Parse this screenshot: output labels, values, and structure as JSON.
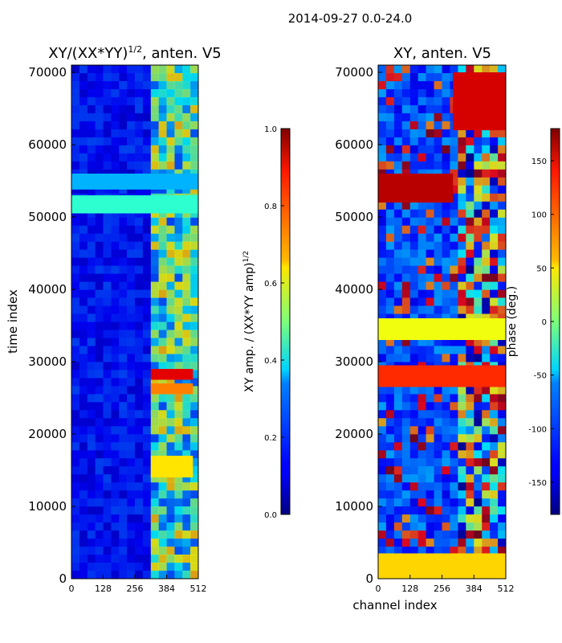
{
  "figure_title": "2014-09-27 0.0-24.0",
  "chart_data": [
    {
      "type": "heatmap",
      "title": "XY/(XX*YY)^1/2, anten. V5",
      "title_base": "XY/(XX*YY)",
      "title_exp": "1/2",
      "title_suffix": ", anten. V5",
      "xlabel": "",
      "ylabel": "time index",
      "xlim": [
        0,
        512
      ],
      "ylim": [
        0,
        71000
      ],
      "xticks": [
        "0",
        "128",
        "256",
        "384",
        "512"
      ],
      "yticks": [
        "0",
        "10000",
        "20000",
        "30000",
        "40000",
        "50000",
        "60000",
        "70000"
      ],
      "colormap": "jet",
      "colorbar": {
        "label": "XY amp. / (XX*YY amp)^1/2",
        "label_base": "XY amp. / (XX*YY amp)",
        "label_exp": "1/2",
        "range": [
          0.0,
          1.0
        ],
        "ticks": [
          "0.0",
          "0.2",
          "0.4",
          "0.6",
          "0.8",
          "1.0"
        ]
      },
      "bands": [
        {
          "t0": 50500,
          "t1": 53000,
          "c0": 0,
          "c1": 512,
          "value": 0.42
        },
        {
          "t0": 53800,
          "t1": 56000,
          "c0": 0,
          "c1": 512,
          "value": 0.3
        },
        {
          "t0": 27500,
          "t1": 29000,
          "c0": 320,
          "c1": 490,
          "value": 0.9
        },
        {
          "t0": 25500,
          "t1": 27000,
          "c0": 320,
          "c1": 490,
          "value": 0.75
        },
        {
          "t0": 14000,
          "t1": 17000,
          "c0": 320,
          "c1": 490,
          "value": 0.65
        }
      ]
    },
    {
      "type": "heatmap",
      "title": "XY, anten. V5",
      "xlabel": "channel index",
      "ylabel": "",
      "xlim": [
        0,
        512
      ],
      "ylim": [
        0,
        71000
      ],
      "xticks": [
        "0",
        "128",
        "256",
        "384",
        "512"
      ],
      "yticks": [
        "0",
        "10000",
        "20000",
        "30000",
        "40000",
        "50000",
        "60000",
        "70000"
      ],
      "colormap": "jet",
      "colorbar": {
        "label": "phase (deg.)",
        "range": [
          -180,
          180
        ],
        "ticks": [
          "-150",
          "-100",
          "-50",
          "0",
          "50",
          "100",
          "150"
        ]
      },
      "bands": [
        {
          "t0": 26500,
          "t1": 29500,
          "c0": 0,
          "c1": 512,
          "value": 120
        },
        {
          "t0": 33000,
          "t1": 36000,
          "c0": 0,
          "c1": 512,
          "value": 40
        },
        {
          "t0": 52000,
          "t1": 56000,
          "c0": 0,
          "c1": 300,
          "value": 160
        },
        {
          "t0": 62000,
          "t1": 70000,
          "c0": 300,
          "c1": 512,
          "value": 150
        },
        {
          "t0": 0,
          "t1": 3500,
          "c0": 0,
          "c1": 512,
          "value": 60
        }
      ]
    }
  ]
}
